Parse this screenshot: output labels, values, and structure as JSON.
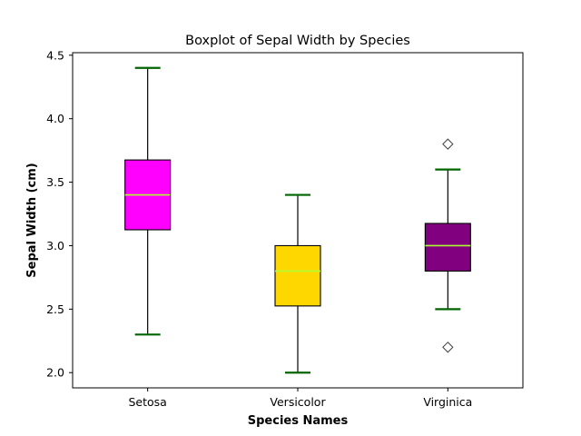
{
  "chart_data": {
    "type": "boxplot",
    "title": "Boxplot of Sepal Width by Species",
    "xlabel": "Species Names",
    "ylabel": "Sepal Width (cm)",
    "categories": [
      "Setosa",
      "Versicolor",
      "Virginica"
    ],
    "ylim": [
      1.88,
      4.52
    ],
    "yticks": [
      2.0,
      2.5,
      3.0,
      3.5,
      4.0,
      4.5
    ],
    "ytick_labels": [
      "2.0",
      "2.5",
      "3.0",
      "3.5",
      "4.0",
      "4.5"
    ],
    "grid": false,
    "boxes": [
      {
        "category": "Setosa",
        "whisker_low": 2.3,
        "q1": 3.125,
        "median": 3.4,
        "q3": 3.675,
        "whisker_high": 4.4,
        "outliers": [],
        "color": "#ff00ff"
      },
      {
        "category": "Versicolor",
        "whisker_low": 2.0,
        "q1": 2.525,
        "median": 2.8,
        "q3": 3.0,
        "whisker_high": 3.4,
        "outliers": [],
        "color": "#ffd700"
      },
      {
        "category": "Virginica",
        "whisker_low": 2.5,
        "q1": 2.8,
        "median": 3.0,
        "q3": 3.175,
        "whisker_high": 3.6,
        "outliers": [
          3.8,
          2.2
        ],
        "color": "#800080"
      }
    ],
    "styles": {
      "median_color": "#adff2f",
      "cap_color": "#006400",
      "whisker_color": "#000000",
      "box_edge_color": "#000000",
      "outlier_edge_color": "#000000",
      "outlier_marker": "diamond"
    }
  }
}
